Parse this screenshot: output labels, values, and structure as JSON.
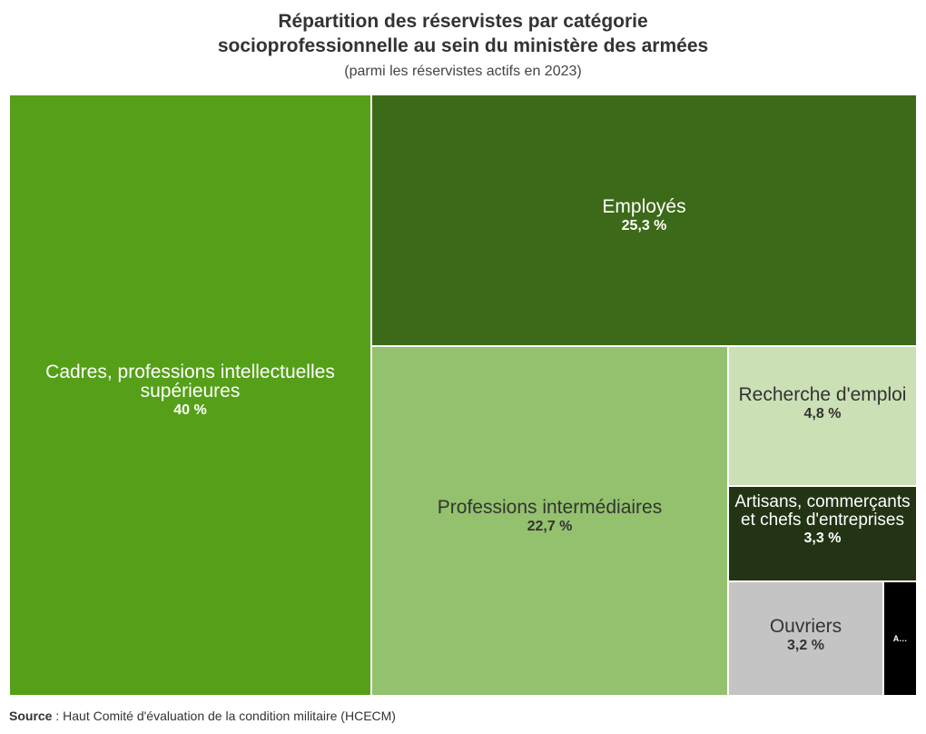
{
  "title_line1": "Répartition des réservistes par catégorie",
  "title_line2": "socioprofessionnelle au sein du ministère des armées",
  "subtitle": "(parmi les réservistes actifs en 2023)",
  "source": {
    "label": "Source",
    "text": " : Haut Comité d'évaluation de la condition militaire (HCECM)"
  },
  "chart_data": {
    "type": "treemap",
    "title": "Répartition des réservistes par catégorie socioprofessionnelle au sein du ministère des armées",
    "subtitle": "(parmi les réservistes actifs en 2023)",
    "unit": "%",
    "items": [
      {
        "name": "Cadres, professions intellectuelles supérieures",
        "value": 40,
        "label": "40 %",
        "color": "#55a018",
        "text_color": "#ffffff"
      },
      {
        "name": "Employés",
        "value": 25.3,
        "label": "25,3 %",
        "color": "#3c6a18",
        "text_color": "#ffffff"
      },
      {
        "name": "Professions intermédiaires",
        "value": 22.7,
        "label": "22,7 %",
        "color": "#93c16d",
        "text_color": "#333333"
      },
      {
        "name": "Recherche d'emploi",
        "value": 4.8,
        "label": "4,8 %",
        "color": "#cbe0b5",
        "text_color": "#333333"
      },
      {
        "name": "Artisans, commerçants et chefs d'entreprises",
        "value": 3.3,
        "label": "3,3 %",
        "color": "#233414",
        "text_color": "#ffffff"
      },
      {
        "name": "Ouvriers",
        "value": 3.2,
        "label": "3,2 %",
        "color": "#c4c4c4",
        "text_color": "#333333"
      },
      {
        "name": "A…",
        "value": 1.4,
        "label": "",
        "color": "#000000",
        "text_color": "#ffffff"
      }
    ]
  }
}
